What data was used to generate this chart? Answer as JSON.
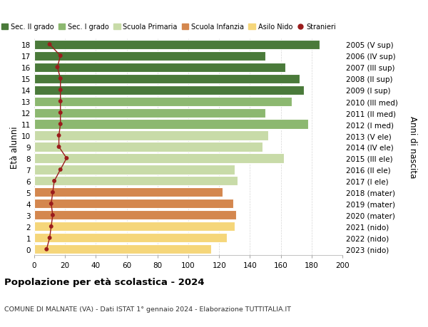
{
  "ages": [
    0,
    1,
    2,
    3,
    4,
    5,
    6,
    7,
    8,
    9,
    10,
    11,
    12,
    13,
    14,
    15,
    16,
    17,
    18
  ],
  "bar_values": [
    115,
    125,
    130,
    131,
    129,
    122,
    132,
    130,
    162,
    148,
    152,
    178,
    150,
    167,
    175,
    172,
    163,
    150,
    185
  ],
  "stranieri": [
    8,
    10,
    11,
    12,
    11,
    12,
    13,
    17,
    21,
    16,
    16,
    17,
    17,
    17,
    17,
    17,
    15,
    17,
    10
  ],
  "right_labels": [
    "2023 (nido)",
    "2022 (nido)",
    "2021 (nido)",
    "2020 (mater)",
    "2019 (mater)",
    "2018 (mater)",
    "2017 (I ele)",
    "2016 (II ele)",
    "2015 (III ele)",
    "2014 (IV ele)",
    "2013 (V ele)",
    "2012 (I med)",
    "2011 (II med)",
    "2010 (III med)",
    "2009 (I sup)",
    "2008 (II sup)",
    "2007 (III sup)",
    "2006 (IV sup)",
    "2005 (V sup)"
  ],
  "bar_colors": [
    "#f5d67a",
    "#f5d67a",
    "#f5d67a",
    "#d4874e",
    "#d4874e",
    "#d4874e",
    "#c8dba8",
    "#c8dba8",
    "#c8dba8",
    "#c8dba8",
    "#c8dba8",
    "#8cb870",
    "#8cb870",
    "#8cb870",
    "#4a7a3a",
    "#4a7a3a",
    "#4a7a3a",
    "#4a7a3a",
    "#4a7a3a"
  ],
  "legend_labels": [
    "Sec. II grado",
    "Sec. I grado",
    "Scuola Primaria",
    "Scuola Infanzia",
    "Asilo Nido",
    "Stranieri"
  ],
  "legend_colors": [
    "#4a7a3a",
    "#8cb870",
    "#c8dba8",
    "#d4874e",
    "#f5d67a",
    "#9b1c1c"
  ],
  "title_main": "Popolazione per età scolastica - 2024",
  "title_sub": "COMUNE DI MALNATE (VA) - Dati ISTAT 1° gennaio 2024 - Elaborazione TUTTITALIA.IT",
  "ylabel_left": "Età alunni",
  "ylabel_right": "Anni di nascita",
  "xlim": [
    0,
    200
  ],
  "xticks": [
    0,
    20,
    40,
    60,
    80,
    100,
    120,
    140,
    160,
    180,
    200
  ],
  "stranieri_color": "#9b1c1c",
  "bg_color": "#ffffff",
  "grid_color": "#cccccc"
}
